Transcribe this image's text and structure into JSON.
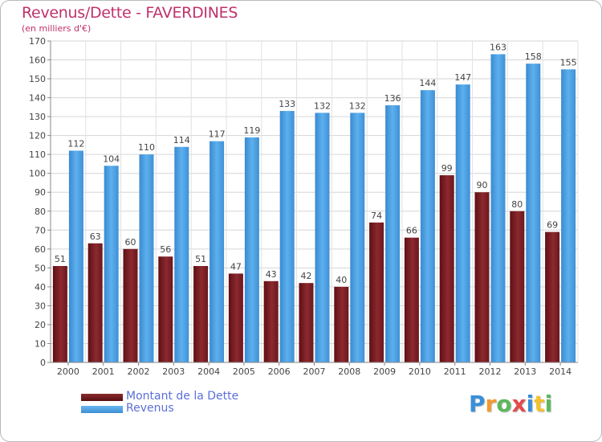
{
  "chart_data": {
    "type": "bar",
    "title": "Revenus/Dette - FAVERDINES",
    "subtitle": "(en milliers d'€)",
    "categories": [
      "2000",
      "2001",
      "2002",
      "2003",
      "2004",
      "2005",
      "2006",
      "2007",
      "2008",
      "2009",
      "2010",
      "2011",
      "2012",
      "2013",
      "2014"
    ],
    "series": [
      {
        "name": "Montant de la Dette",
        "color": "#7a1f24",
        "values": [
          51,
          63,
          60,
          56,
          51,
          47,
          43,
          42,
          40,
          74,
          66,
          99,
          90,
          80,
          69
        ]
      },
      {
        "name": "Revenus",
        "color": "#4fa3e6",
        "values": [
          112,
          104,
          110,
          114,
          117,
          119,
          133,
          132,
          132,
          136,
          144,
          147,
          163,
          158,
          155
        ]
      }
    ],
    "ylim": [
      0,
      170
    ],
    "yticks": [
      0,
      10,
      20,
      30,
      40,
      50,
      60,
      70,
      80,
      90,
      100,
      110,
      120,
      130,
      140,
      150,
      160,
      170
    ],
    "grid": true,
    "legend_position": "bottom-left"
  },
  "brand": {
    "letters": [
      {
        "ch": "P",
        "color": "#3a8fd8"
      },
      {
        "ch": "r",
        "color": "#f29a2e"
      },
      {
        "ch": "o",
        "color": "#5cb85c"
      },
      {
        "ch": "x",
        "color": "#e24b4b"
      },
      {
        "ch": "i",
        "color": "#3a8fd8"
      },
      {
        "ch": "t",
        "color": "#f2c12e"
      },
      {
        "ch": "i",
        "color": "#5cb85c"
      }
    ]
  }
}
